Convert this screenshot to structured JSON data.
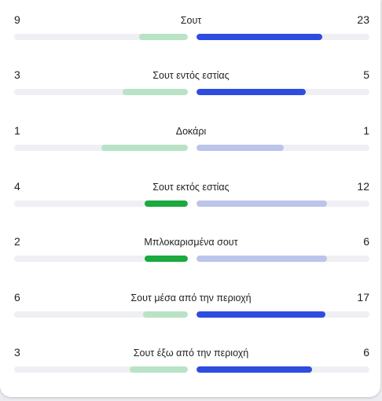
{
  "colors": {
    "home_strong": "#1aaa3e",
    "home_light": "#b8e3c6",
    "away_strong": "#2f4ce0",
    "away_light": "#bcc4ea"
  },
  "stats": [
    {
      "label": "Σουτ",
      "home": "9",
      "away": "23",
      "home_fill": 0.28,
      "away_fill": 0.725,
      "home_color": "home_light",
      "away_color": "away_strong"
    },
    {
      "label": "Σουτ εντός εστίας",
      "home": "3",
      "away": "5",
      "home_fill": 0.375,
      "away_fill": 0.63,
      "home_color": "home_light",
      "away_color": "away_strong"
    },
    {
      "label": "Δοκάρι",
      "home": "1",
      "away": "1",
      "home_fill": 0.5,
      "away_fill": 0.505,
      "home_color": "home_light",
      "away_color": "away_light"
    },
    {
      "label": "Σουτ εκτός εστίας",
      "home": "4",
      "away": "12",
      "home_fill": 0.25,
      "away_fill": 0.755,
      "home_color": "home_strong",
      "away_color": "away_light"
    },
    {
      "label": "Μπλοκαρισμένα σουτ",
      "home": "2",
      "away": "6",
      "home_fill": 0.25,
      "away_fill": 0.755,
      "home_color": "home_strong",
      "away_color": "away_light"
    },
    {
      "label": "Σουτ μέσα από την περιοχή",
      "home": "6",
      "away": "17",
      "home_fill": 0.26,
      "away_fill": 0.745,
      "home_color": "home_light",
      "away_color": "away_strong"
    },
    {
      "label": "Σουτ έξω από την περιοχή",
      "home": "3",
      "away": "6",
      "home_fill": 0.335,
      "away_fill": 0.67,
      "home_color": "home_light",
      "away_color": "away_strong"
    }
  ]
}
